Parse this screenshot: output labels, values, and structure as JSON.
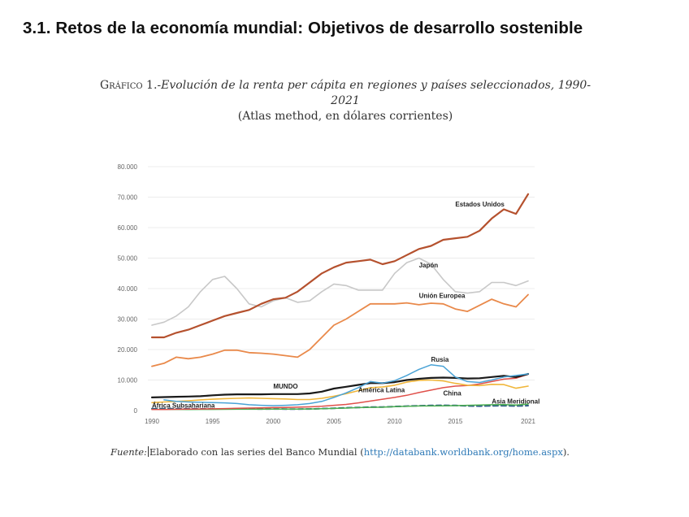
{
  "section": {
    "title": "3.1. Retos de la economía mundial: Objetivos de desarrollo sostenible"
  },
  "caption": {
    "lead": "Gráfico 1.-",
    "title_line1": "Evolución de la renta per cápita en regiones y países seleccionados, 1990-",
    "title_line2": "2021",
    "subtitle": "(Atlas method, en dólares corrientes)"
  },
  "source": {
    "lead": "Fuente:",
    "text": "Elaborado con las series del Banco Mundial (",
    "link": "http://databank.worldbank.org/home.aspx",
    "tail": ")."
  },
  "chart_data": {
    "type": "line",
    "title": "Evolución de la renta per cápita en regiones y países seleccionados, 1990-2021",
    "subtitle": "(Atlas method, en dólares corrientes)",
    "xlabel": "",
    "ylabel": "",
    "ylim": [
      0,
      80000
    ],
    "xlim": [
      1990,
      2021
    ],
    "grid": true,
    "legend": "inline labels",
    "y_ticks": [
      0,
      10000,
      20000,
      30000,
      40000,
      50000,
      60000,
      70000,
      80000
    ],
    "y_tick_labels": [
      "0",
      "10.000",
      "20.000",
      "30.000",
      "40.000",
      "50.000",
      "60.000",
      "70.000",
      "80.000"
    ],
    "x_ticks": [
      1990,
      1995,
      2000,
      2005,
      2010,
      2015,
      2021
    ],
    "x_tick_labels": [
      "1990",
      "1995",
      "2000",
      "2005",
      "2010",
      "2015",
      "2021"
    ],
    "x": [
      1990,
      1991,
      1992,
      1993,
      1994,
      1995,
      1996,
      1997,
      1998,
      1999,
      2000,
      2001,
      2002,
      2003,
      2004,
      2005,
      2006,
      2007,
      2008,
      2009,
      2010,
      2011,
      2012,
      2013,
      2014,
      2015,
      2016,
      2017,
      2018,
      2019,
      2020,
      2021
    ],
    "series": [
      {
        "name": "Estados Unidos",
        "color": "#b5512e",
        "dash": false,
        "width": 2.2,
        "values": [
          24000,
          24000,
          25500,
          26500,
          28000,
          29500,
          31000,
          32000,
          33000,
          35000,
          36500,
          37000,
          39000,
          42000,
          45000,
          47000,
          48500,
          49000,
          49500,
          48000,
          49000,
          51000,
          53000,
          54000,
          56000,
          56500,
          57000,
          59000,
          63000,
          66000,
          64500,
          71000
        ]
      },
      {
        "name": "Japón",
        "color": "#c8c8c8",
        "dash": false,
        "width": 1.6,
        "values": [
          28000,
          29000,
          31000,
          34000,
          39000,
          43000,
          44000,
          40000,
          35000,
          34000,
          36000,
          37000,
          35500,
          36000,
          39000,
          41500,
          41000,
          39500,
          39500,
          39500,
          45000,
          48500,
          50000,
          48000,
          43000,
          39000,
          38500,
          39000,
          42000,
          42000,
          41000,
          42500
        ]
      },
      {
        "name": "Unión Europea",
        "color": "#e9894a",
        "dash": false,
        "width": 1.8,
        "values": [
          14500,
          15500,
          17500,
          17000,
          17500,
          18500,
          19800,
          19800,
          19000,
          18800,
          18500,
          18000,
          17500,
          20000,
          24000,
          28000,
          30000,
          32500,
          35000,
          35000,
          35000,
          35300,
          34700,
          35200,
          35000,
          33300,
          32500,
          34500,
          36500,
          35000,
          34000,
          38000
        ]
      },
      {
        "name": "Rusia",
        "color": "#4aa3d6",
        "dash": false,
        "width": 1.5,
        "values": [
          null,
          3500,
          3000,
          2800,
          2700,
          2600,
          2500,
          2300,
          1900,
          1700,
          1600,
          1700,
          1900,
          2300,
          3000,
          4300,
          5800,
          7500,
          9500,
          9000,
          9800,
          11500,
          13500,
          15000,
          14500,
          11000,
          9500,
          9200,
          10000,
          11000,
          11500,
          12000
        ]
      },
      {
        "name": "MUNDO",
        "color": "#1a1a1a",
        "dash": false,
        "width": 2.2,
        "values": [
          4300,
          4400,
          4500,
          4600,
          4700,
          5000,
          5200,
          5300,
          5300,
          5300,
          5400,
          5400,
          5400,
          5600,
          6200,
          7200,
          7800,
          8400,
          9000,
          9000,
          9300,
          10000,
          10400,
          10700,
          10800,
          10700,
          10500,
          10600,
          11000,
          11400,
          11000,
          12000
        ]
      },
      {
        "name": "América Latina",
        "color": "#f0b63a",
        "dash": false,
        "width": 1.6,
        "values": [
          2600,
          2800,
          3000,
          3200,
          3500,
          3700,
          3900,
          4000,
          4100,
          4000,
          3900,
          3800,
          3600,
          3600,
          4000,
          4700,
          5500,
          6500,
          7500,
          7700,
          8300,
          9300,
          9900,
          10000,
          9700,
          8900,
          8300,
          8200,
          8600,
          8500,
          7300,
          8000
        ]
      },
      {
        "name": "China",
        "color": "#e0504a",
        "dash": false,
        "width": 1.5,
        "values": [
          350,
          350,
          400,
          450,
          500,
          550,
          650,
          750,
          800,
          850,
          950,
          1000,
          1100,
          1200,
          1400,
          1700,
          2000,
          2500,
          3100,
          3700,
          4300,
          5000,
          5900,
          6700,
          7500,
          8000,
          8200,
          8700,
          9500,
          10300,
          10600,
          11900
        ]
      },
      {
        "name": "Asia Meridional",
        "color": "#4caf50",
        "dash": false,
        "width": 1.5,
        "values": [
          380,
          370,
          360,
          350,
          360,
          380,
          400,
          420,
          430,
          440,
          450,
          460,
          470,
          520,
          600,
          700,
          800,
          950,
          1050,
          1100,
          1250,
          1400,
          1500,
          1500,
          1550,
          1600,
          1700,
          1800,
          1900,
          1950,
          1800,
          2100
        ]
      },
      {
        "name": "África Subsahariana",
        "color": "#2e5a88",
        "dash": true,
        "width": 2.0,
        "values": [
          600,
          600,
          580,
          560,
          540,
          530,
          540,
          550,
          540,
          520,
          500,
          490,
          480,
          520,
          620,
          750,
          880,
          1000,
          1120,
          1150,
          1300,
          1450,
          1550,
          1650,
          1700,
          1650,
          1500,
          1450,
          1550,
          1580,
          1500,
          1600
        ]
      }
    ],
    "annotations": [
      {
        "text": "Estados Unidos",
        "x": 2015,
        "y": 67000
      },
      {
        "text": "Japón",
        "x": 2012,
        "y": 47000
      },
      {
        "text": "Unión Europea",
        "x": 2012,
        "y": 37000
      },
      {
        "text": "Rusia",
        "x": 2013,
        "y": 16000
      },
      {
        "text": "MUNDO",
        "x": 2000,
        "y": 7200
      },
      {
        "text": "América Latina",
        "x": 2007,
        "y": 6000
      },
      {
        "text": "China",
        "x": 2014,
        "y": 5000
      },
      {
        "text": "Asia Meridional",
        "x": 2018,
        "y": 2300
      },
      {
        "text": "África Subsahariana",
        "x": 1990,
        "y": 1000
      }
    ]
  }
}
